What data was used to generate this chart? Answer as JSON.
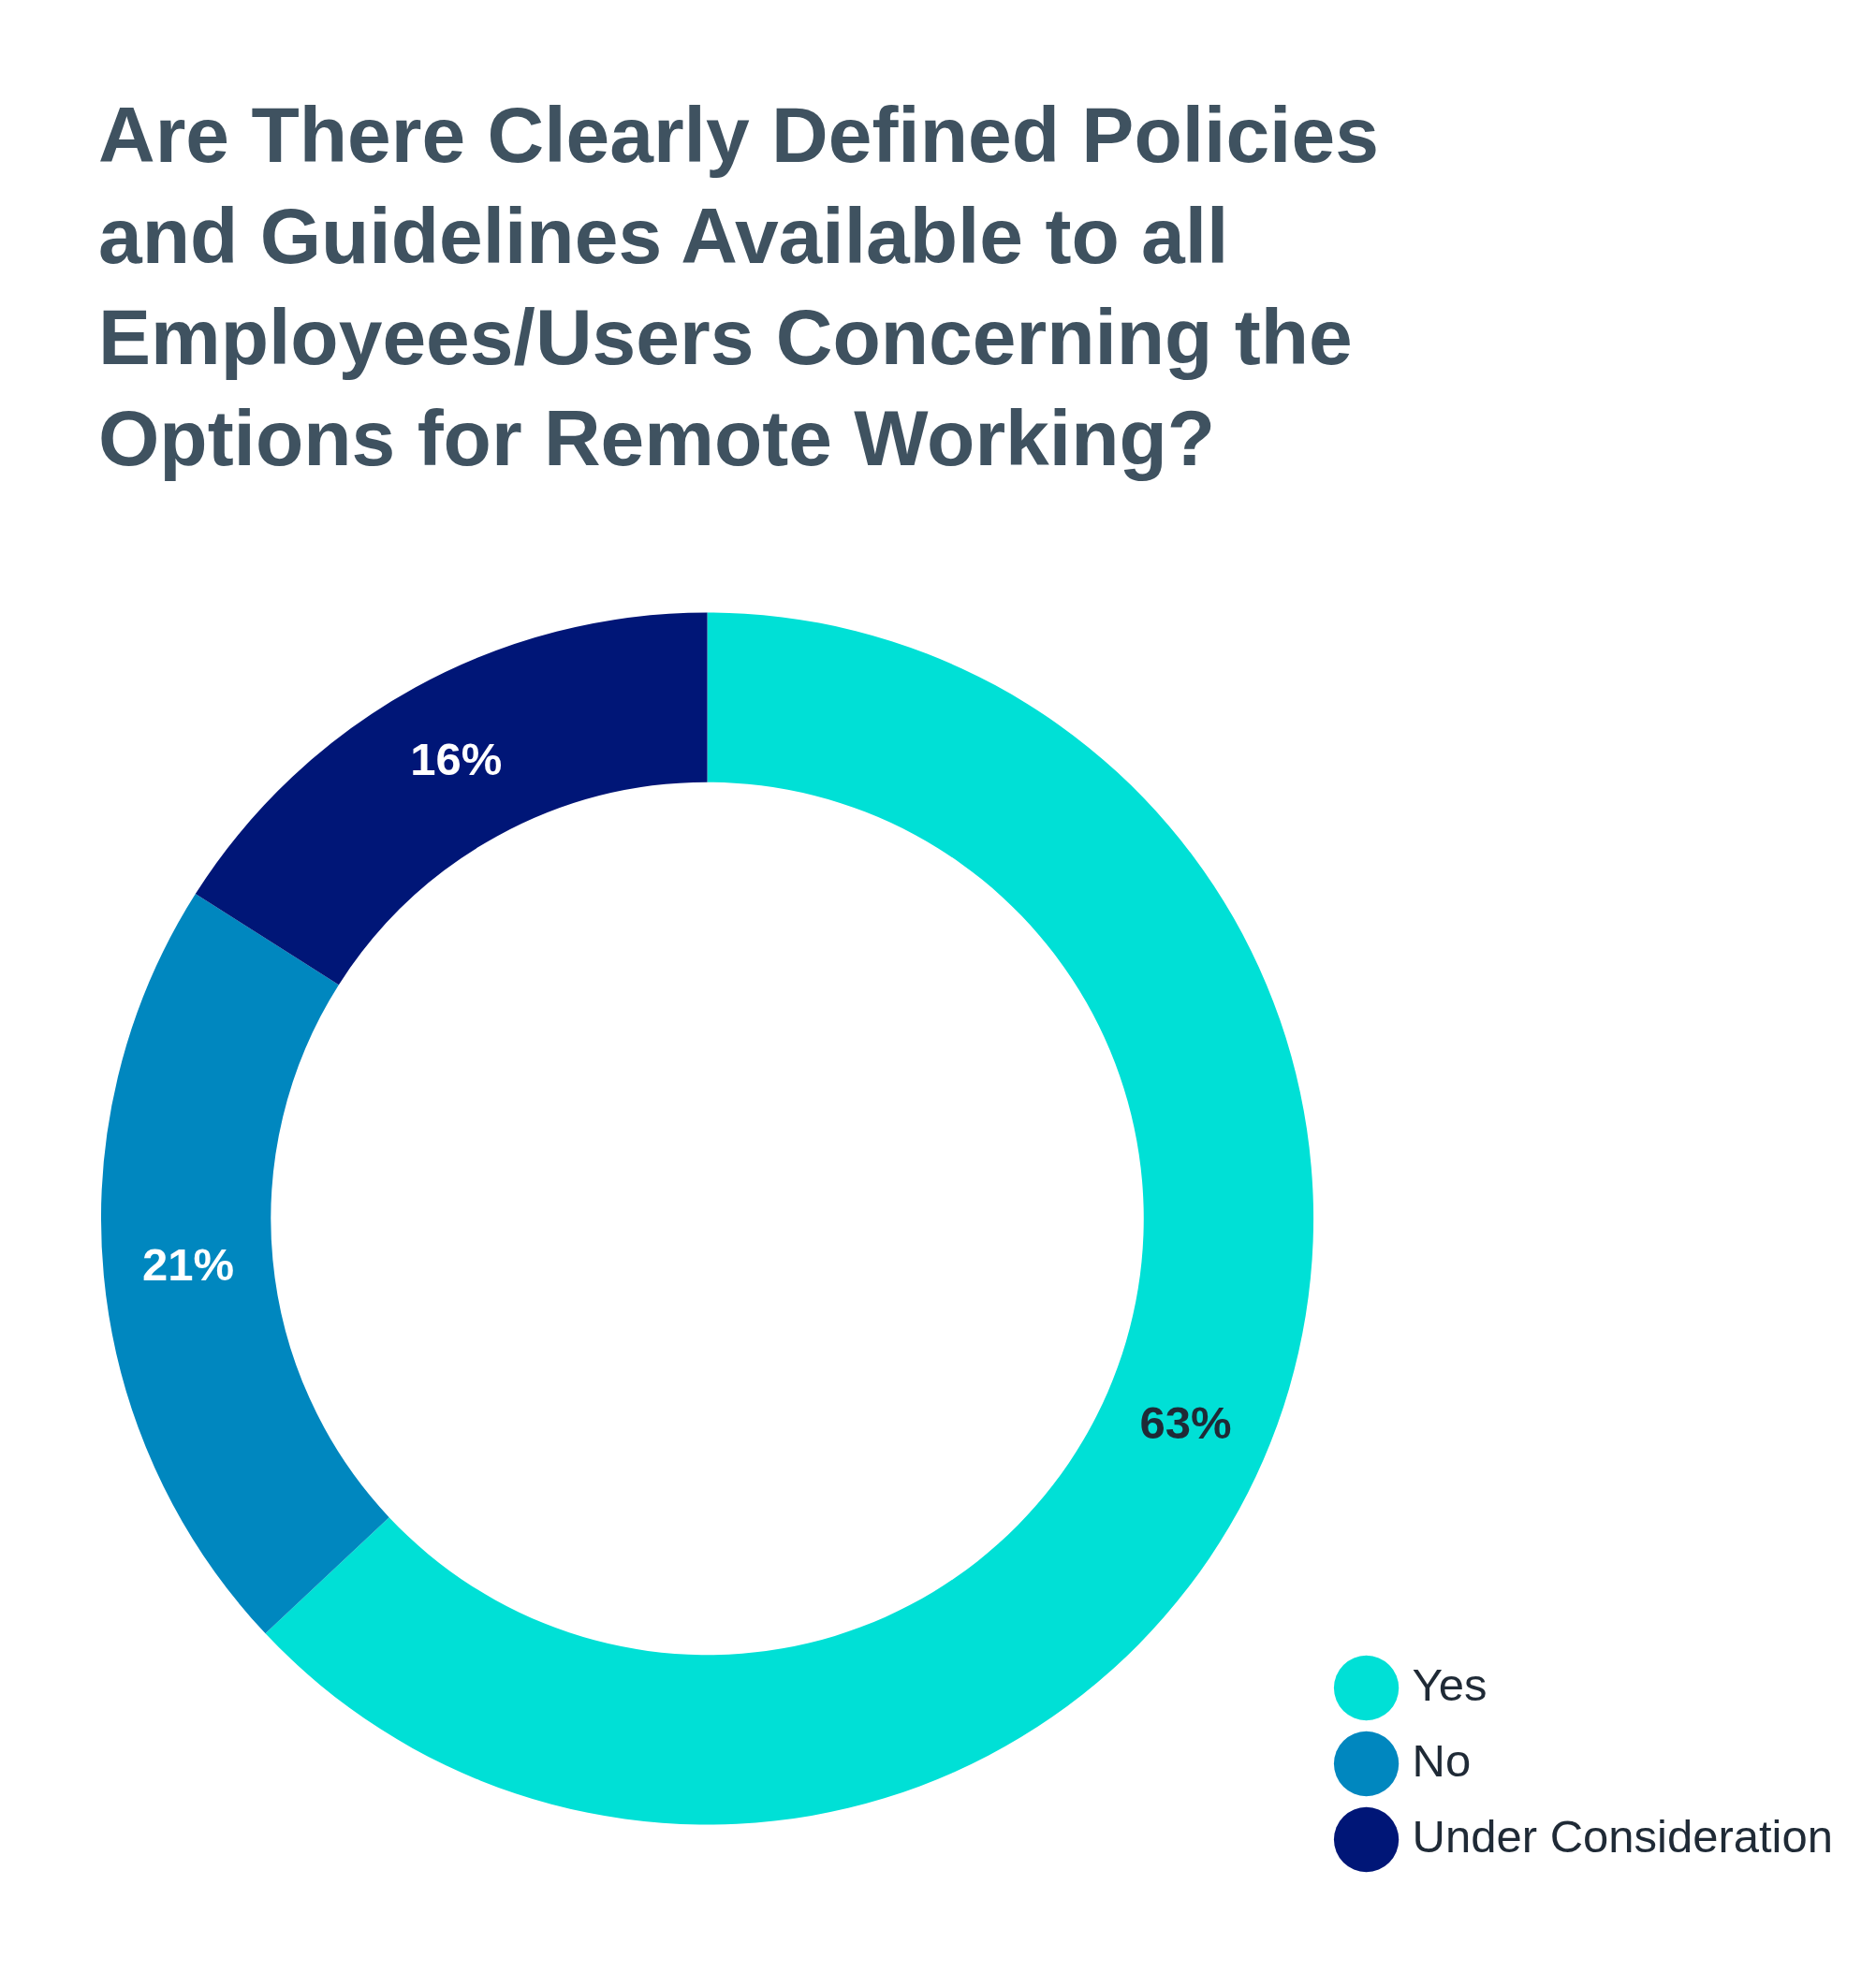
{
  "chart_data": {
    "type": "donut",
    "title": "Are There Clearly Defined Policies and Guidelines Available to all Employees/Users Concerning the Options for Remote Working?",
    "categories": [
      "Yes",
      "No",
      "Under Consideration"
    ],
    "values": [
      63,
      21,
      16
    ],
    "colors": [
      "#00e0d6",
      "#0087bf",
      "#001677"
    ],
    "value_labels": [
      "63%",
      "21%",
      "16%"
    ],
    "legend": "bottom right"
  }
}
